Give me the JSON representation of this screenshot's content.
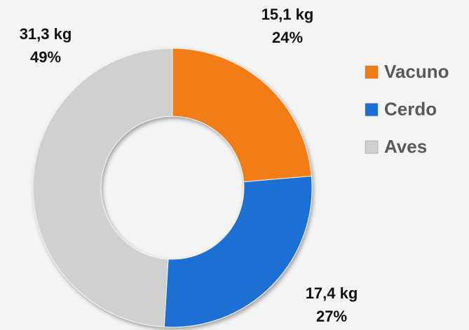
{
  "chart_data": {
    "type": "donut",
    "categories": [
      "Vacuno",
      "Cerdo",
      "Aves"
    ],
    "values": [
      15.1,
      17.4,
      31.3
    ],
    "value_labels": [
      "15,1 kg",
      "17,4 kg",
      "31,3 kg"
    ],
    "percents": [
      24,
      27,
      49
    ],
    "percent_labels": [
      "24%",
      "27%",
      "49%"
    ],
    "colors": [
      "#f27b14",
      "#1a6fd4",
      "#d0d0d0"
    ],
    "legend": "right"
  }
}
